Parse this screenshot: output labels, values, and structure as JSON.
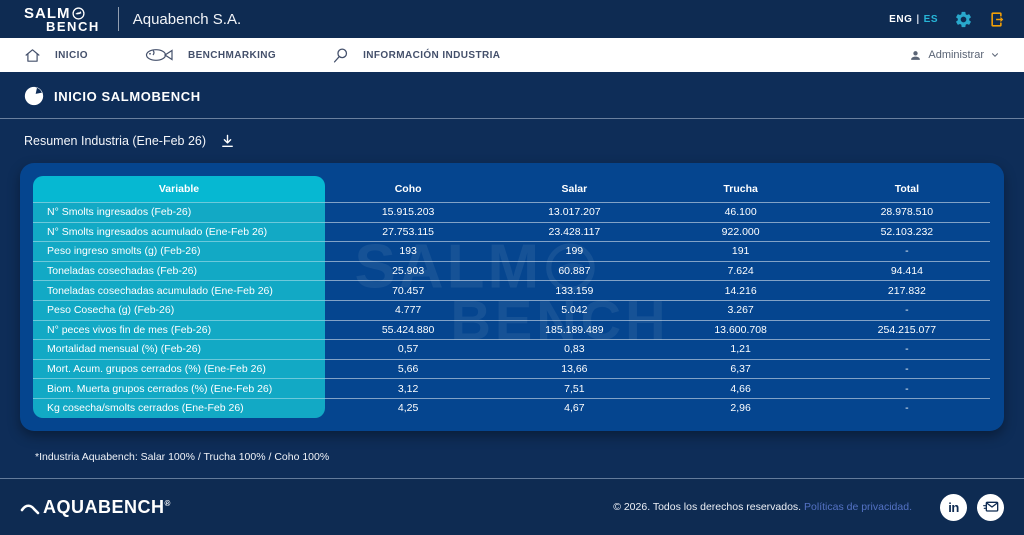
{
  "header": {
    "logo_line1": "SALM",
    "logo_line2": "BENCH",
    "company": "Aquabench S.A.",
    "lang_eng": "ENG",
    "lang_sep": "|",
    "lang_es": "ES"
  },
  "nav": {
    "items": [
      {
        "label": "INICIO"
      },
      {
        "label": "BENCHMARKING"
      },
      {
        "label": "INFORMACIÓN INDUSTRIA"
      }
    ],
    "admin_label": "Administrar"
  },
  "main": {
    "page_title": "INICIO SALMOBENCH",
    "section_title": "Resumen Industria (Ene-Feb 26)",
    "footnote": "*Industria Aquabench: Salar 100% / Trucha 100% / Coho 100%"
  },
  "watermark": {
    "line1": "SALM",
    "line2": "BENCH"
  },
  "table": {
    "columns": [
      "Variable",
      "Coho",
      "Salar",
      "Trucha",
      "Total"
    ],
    "rows": [
      {
        "variable": "N° Smolts ingresados (Feb-26)",
        "coho": "15.915.203",
        "salar": "13.017.207",
        "trucha": "46.100",
        "total": "28.978.510"
      },
      {
        "variable": "N° Smolts ingresados acumulado (Ene-Feb 26)",
        "coho": "27.753.115",
        "salar": "23.428.117",
        "trucha": "922.000",
        "total": "52.103.232"
      },
      {
        "variable": "Peso ingreso smolts (g) (Feb-26)",
        "coho": "193",
        "salar": "199",
        "trucha": "191",
        "total": "-"
      },
      {
        "variable": "Toneladas cosechadas (Feb-26)",
        "coho": "25.903",
        "salar": "60.887",
        "trucha": "7.624",
        "total": "94.414"
      },
      {
        "variable": "Toneladas cosechadas acumulado (Ene-Feb 26)",
        "coho": "70.457",
        "salar": "133.159",
        "trucha": "14.216",
        "total": "217.832"
      },
      {
        "variable": "Peso Cosecha (g) (Feb-26)",
        "coho": "4.777",
        "salar": "5.042",
        "trucha": "3.267",
        "total": "-"
      },
      {
        "variable": "N° peces vivos fin de mes (Feb-26)",
        "coho": "55.424.880",
        "salar": "185.189.489",
        "trucha": "13.600.708",
        "total": "254.215.077"
      },
      {
        "variable": "Mortalidad mensual (%) (Feb-26)",
        "coho": "0,57",
        "salar": "0,83",
        "trucha": "1,21",
        "total": "-"
      },
      {
        "variable": "Mort. Acum. grupos cerrados (%) (Ene-Feb 26)",
        "coho": "5,66",
        "salar": "13,66",
        "trucha": "6,37",
        "total": "-"
      },
      {
        "variable": "Biom. Muerta grupos cerrados (%) (Ene-Feb 26)",
        "coho": "3,12",
        "salar": "7,51",
        "trucha": "4,66",
        "total": "-"
      },
      {
        "variable": "Kg cosecha/smolts cerrados (Ene-Feb 26)",
        "coho": "4,25",
        "salar": "4,67",
        "trucha": "2,96",
        "total": "-"
      }
    ]
  },
  "footer": {
    "brand": "AQUABENCH",
    "reg": "®",
    "copyright": "© 2026. Todos los derechos reservados.",
    "privacy_link": "Políticas de privacidad.",
    "linkedin_label": "in"
  },
  "colors": {
    "header_navy": "#0e2b52",
    "main_navy": "#0e2d58",
    "card_blue": "#05458f",
    "cyan_header": "#06b8d2",
    "cyan_row": "#12a9c5",
    "accent_cyan": "#27b6d8",
    "logout_orange": "#f2a007",
    "link_blue": "#5472c4"
  }
}
